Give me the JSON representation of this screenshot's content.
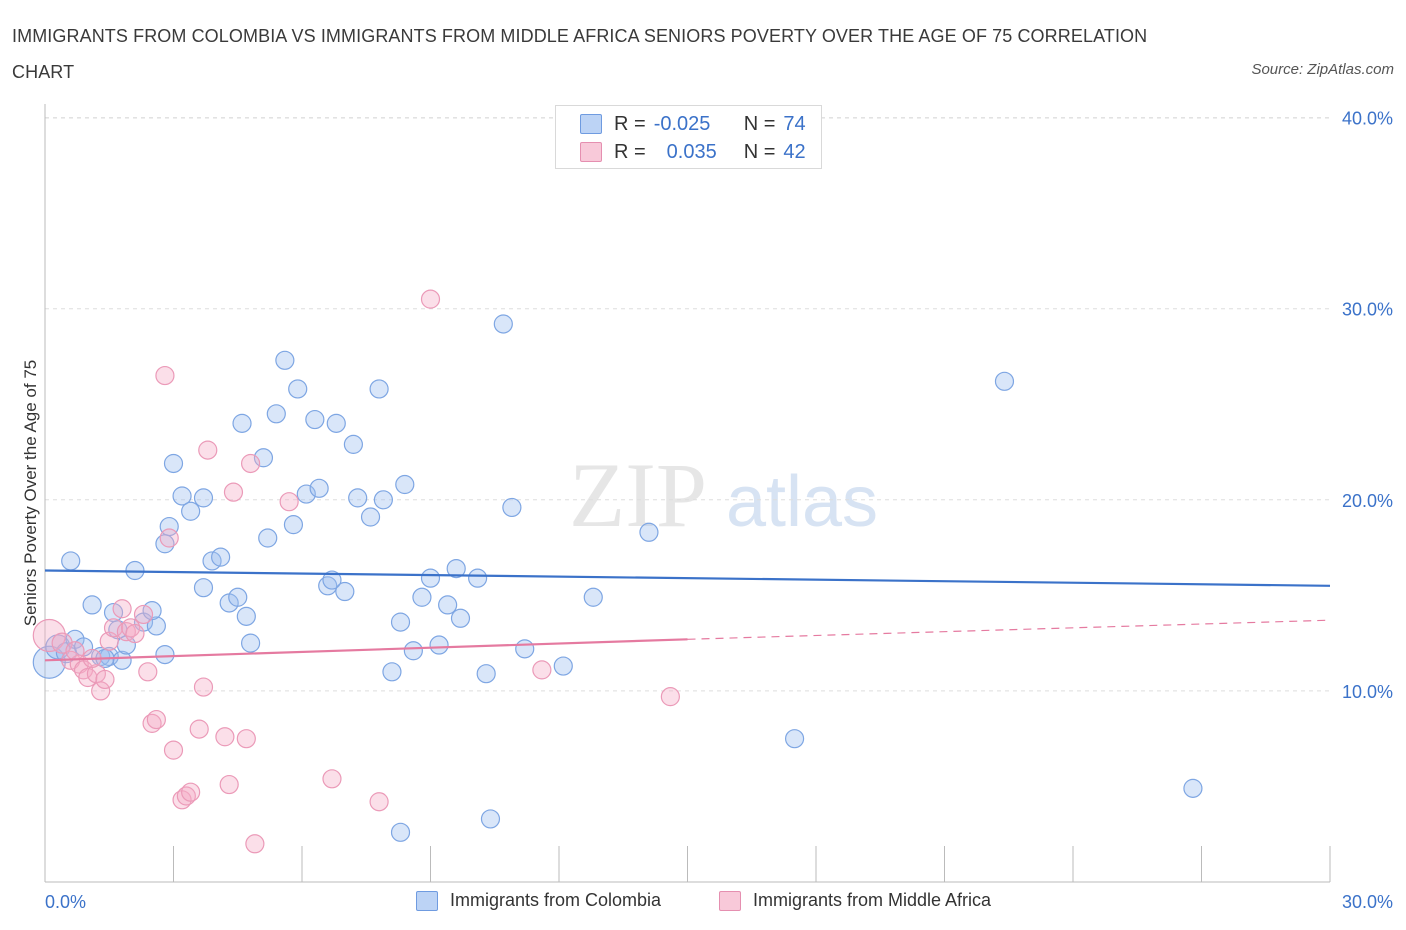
{
  "chart_data": {
    "type": "scatter",
    "title": "IMMIGRANTS FROM COLOMBIA VS IMMIGRANTS FROM MIDDLE AFRICA SENIORS POVERTY OVER THE AGE OF 75 CORRELATION CHART",
    "source": "Source: ZipAtlas.com",
    "ylabel": "Seniors Poverty Over the Age of 75",
    "xlabel": "",
    "xlim": [
      0,
      30
    ],
    "ylim": [
      0,
      40
    ],
    "x_tick_labels": [
      "0.0%",
      "30.0%"
    ],
    "y_ticks": [
      10,
      20,
      30,
      40
    ],
    "y_tick_labels": [
      "10.0%",
      "20.0%",
      "30.0%",
      "40.0%"
    ],
    "colors": {
      "blue": "#3b72c9",
      "pink": "#e57aa0"
    },
    "watermark": {
      "zip": "ZIP",
      "atlas": "atlas"
    },
    "legend": [
      {
        "r_label": "R =",
        "r_value": "-0.025",
        "n_label": "N =",
        "n_value": "74"
      },
      {
        "r_label": "R =",
        "r_value": "0.035",
        "n_label": "N =",
        "n_value": "42"
      }
    ],
    "series": [
      {
        "name": "Immigrants from Colombia",
        "color": "#3b72c9",
        "trend": {
          "x0": 0,
          "y0": 16.3,
          "x1": 30,
          "y1": 15.5
        },
        "points": [
          [
            0.1,
            11.5,
            16
          ],
          [
            0.3,
            12.3,
            12
          ],
          [
            0.5,
            12.0,
            10
          ],
          [
            0.7,
            12.7,
            9
          ],
          [
            0.9,
            12.3,
            9
          ],
          [
            0.6,
            16.8,
            9
          ],
          [
            1.1,
            14.5,
            9
          ],
          [
            1.3,
            11.8,
            9
          ],
          [
            1.5,
            11.8,
            9
          ],
          [
            1.8,
            11.6,
            9
          ],
          [
            1.6,
            14.1,
            9
          ],
          [
            1.7,
            13.2,
            9
          ],
          [
            2.1,
            16.3,
            9
          ],
          [
            2.3,
            13.6,
            9
          ],
          [
            2.6,
            13.4,
            9
          ],
          [
            2.8,
            11.9,
            9
          ],
          [
            2.5,
            14.2,
            9
          ],
          [
            3.0,
            21.9,
            9
          ],
          [
            3.2,
            20.2,
            9
          ],
          [
            3.4,
            19.4,
            9
          ],
          [
            2.9,
            18.6,
            9
          ],
          [
            2.8,
            17.7,
            9
          ],
          [
            3.7,
            20.1,
            9
          ],
          [
            3.9,
            16.8,
            9
          ],
          [
            4.1,
            17.0,
            9
          ],
          [
            3.7,
            15.4,
            9
          ],
          [
            4.3,
            14.6,
            9
          ],
          [
            4.5,
            14.9,
            9
          ],
          [
            4.7,
            13.9,
            9
          ],
          [
            4.8,
            12.5,
            9
          ],
          [
            4.6,
            24.0,
            9
          ],
          [
            5.1,
            22.2,
            9
          ],
          [
            5.2,
            18.0,
            9
          ],
          [
            5.4,
            24.5,
            9
          ],
          [
            5.6,
            27.3,
            9
          ],
          [
            5.8,
            18.7,
            9
          ],
          [
            5.9,
            25.8,
            9
          ],
          [
            6.1,
            20.3,
            9
          ],
          [
            6.3,
            24.2,
            9
          ],
          [
            6.4,
            20.6,
            9
          ],
          [
            6.6,
            15.5,
            9
          ],
          [
            6.7,
            15.8,
            9
          ],
          [
            6.8,
            24.0,
            9
          ],
          [
            7.0,
            15.2,
            9
          ],
          [
            7.3,
            20.1,
            9
          ],
          [
            7.2,
            22.9,
            9
          ],
          [
            7.6,
            19.1,
            9
          ],
          [
            7.8,
            25.8,
            9
          ],
          [
            7.9,
            20.0,
            9
          ],
          [
            8.1,
            11.0,
            9
          ],
          [
            8.3,
            13.6,
            9
          ],
          [
            8.4,
            20.8,
            9
          ],
          [
            8.6,
            12.1,
            9
          ],
          [
            8.8,
            14.9,
            9
          ],
          [
            9.0,
            15.9,
            9
          ],
          [
            9.2,
            12.4,
            9
          ],
          [
            9.4,
            14.5,
            9
          ],
          [
            9.6,
            16.4,
            9
          ],
          [
            9.7,
            13.8,
            9
          ],
          [
            10.1,
            15.9,
            9
          ],
          [
            10.3,
            10.9,
            9
          ],
          [
            10.7,
            29.2,
            9
          ],
          [
            10.9,
            19.6,
            9
          ],
          [
            11.2,
            12.2,
            9
          ],
          [
            12.1,
            11.3,
            9
          ],
          [
            12.8,
            14.9,
            9
          ],
          [
            14.1,
            18.3,
            9
          ],
          [
            8.3,
            2.6,
            9
          ],
          [
            10.4,
            3.3,
            9
          ],
          [
            17.5,
            7.5,
            9
          ],
          [
            22.4,
            26.2,
            9
          ],
          [
            26.8,
            4.9,
            9
          ],
          [
            1.4,
            11.7,
            9
          ],
          [
            1.9,
            12.4,
            9
          ]
        ]
      },
      {
        "name": "Immigrants from Middle Africa",
        "color": "#e57aa0",
        "trend": {
          "x0": 0,
          "y0": 11.6,
          "x1": 15,
          "y1": 12.7,
          "dash_x1": 30,
          "dash_y1": 13.7
        },
        "points": [
          [
            0.1,
            12.9,
            16
          ],
          [
            0.4,
            12.5,
            10
          ],
          [
            0.6,
            11.6,
            9
          ],
          [
            0.8,
            11.4,
            9
          ],
          [
            0.9,
            11.1,
            9
          ],
          [
            1.0,
            10.7,
            9
          ],
          [
            1.2,
            10.9,
            9
          ],
          [
            1.3,
            10.0,
            9
          ],
          [
            1.4,
            10.6,
            9
          ],
          [
            1.5,
            12.6,
            9
          ],
          [
            1.6,
            13.3,
            9
          ],
          [
            1.8,
            14.3,
            9
          ],
          [
            1.9,
            13.1,
            9
          ],
          [
            2.0,
            13.3,
            9
          ],
          [
            2.1,
            13.0,
            9
          ],
          [
            2.3,
            14.0,
            9
          ],
          [
            2.4,
            11.0,
            9
          ],
          [
            2.5,
            8.3,
            9
          ],
          [
            2.6,
            8.5,
            9
          ],
          [
            2.8,
            26.5,
            9
          ],
          [
            2.9,
            18.0,
            9
          ],
          [
            3.0,
            6.9,
            9
          ],
          [
            3.2,
            4.3,
            9
          ],
          [
            3.3,
            4.5,
            9
          ],
          [
            3.4,
            4.7,
            9
          ],
          [
            3.6,
            8.0,
            9
          ],
          [
            3.7,
            10.2,
            9
          ],
          [
            3.8,
            22.6,
            9
          ],
          [
            4.2,
            7.6,
            9
          ],
          [
            4.3,
            5.1,
            9
          ],
          [
            4.4,
            20.4,
            9
          ],
          [
            4.7,
            7.5,
            9
          ],
          [
            4.8,
            21.9,
            9
          ],
          [
            4.9,
            2.0,
            9
          ],
          [
            5.7,
            19.9,
            9
          ],
          [
            6.7,
            5.4,
            9
          ],
          [
            7.8,
            4.2,
            9
          ],
          [
            9.0,
            30.5,
            9
          ],
          [
            11.6,
            11.1,
            9
          ],
          [
            14.6,
            9.7,
            9
          ],
          [
            0.7,
            12.1,
            9
          ],
          [
            1.1,
            11.7,
            9
          ]
        ]
      }
    ]
  }
}
